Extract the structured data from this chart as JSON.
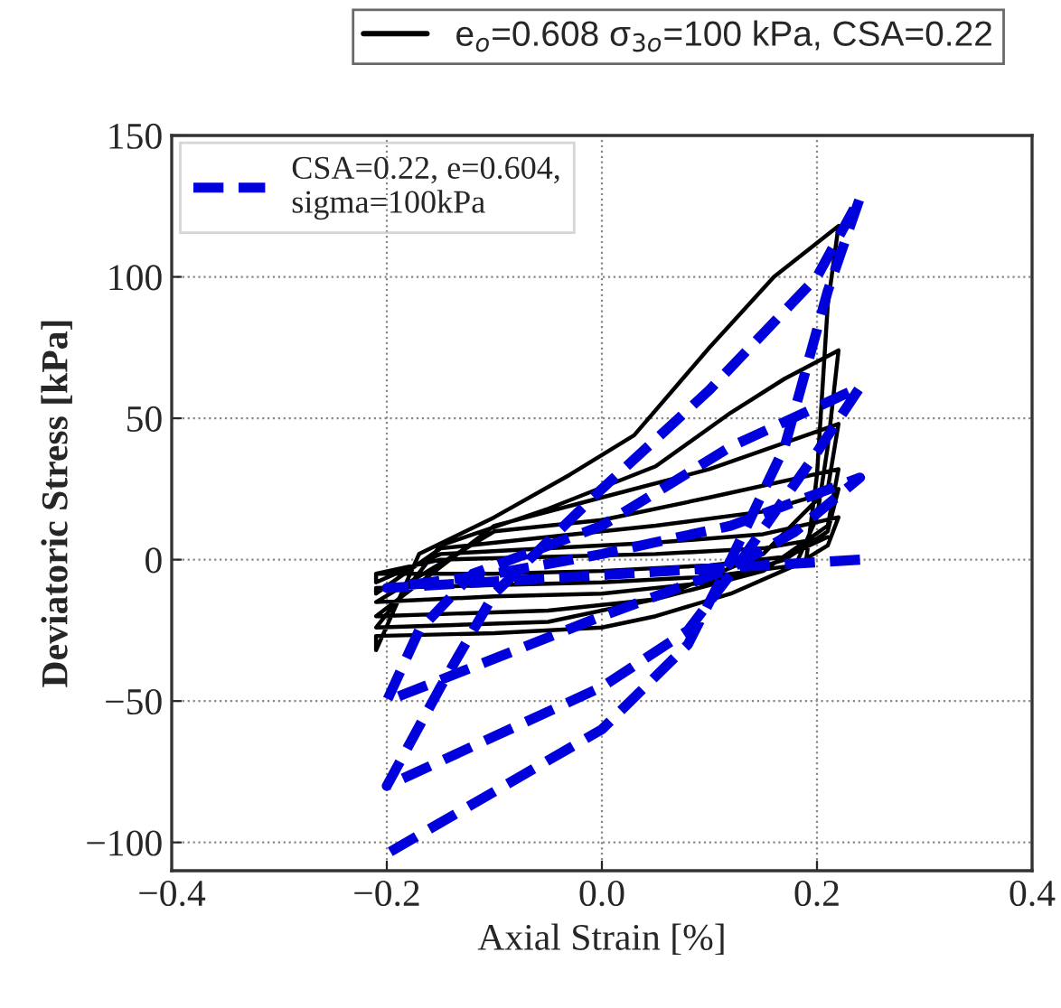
{
  "chart_data": {
    "type": "line",
    "xlabel": "Axial Strain [%]",
    "ylabel": "Deviatoric Stress [kPa]",
    "xlim": [
      -0.4,
      0.4
    ],
    "ylim": [
      -110,
      150
    ],
    "xticks": [
      {
        "value": -0.4,
        "label": "−0.4"
      },
      {
        "value": -0.2,
        "label": "−0.2"
      },
      {
        "value": 0.0,
        "label": "0.0"
      },
      {
        "value": 0.2,
        "label": "0.2"
      },
      {
        "value": 0.4,
        "label": "0.4"
      }
    ],
    "yticks": [
      {
        "value": -100,
        "label": "−100"
      },
      {
        "value": -50,
        "label": "−50"
      },
      0,
      50,
      100,
      150
    ],
    "grid": true,
    "legend": "top left",
    "series": [
      {
        "name": "e$_{o}$=0.608 σ$_{3o}$=100 kPa, CSA=0.22",
        "color": "#000000",
        "line_style": "solid",
        "x": [
          -0.21,
          -0.15,
          -0.05,
          0.05,
          0.15,
          0.21,
          0.17,
          0.1,
          0.0,
          -0.1,
          -0.21,
          -0.21,
          -0.15,
          -0.05,
          0.05,
          0.15,
          0.22,
          0.21,
          0.18,
          0.1,
          0.0,
          -0.1,
          -0.21,
          -0.21,
          -0.15,
          -0.05,
          0.05,
          0.15,
          0.22,
          0.21,
          0.17,
          0.1,
          0.0,
          -0.1,
          -0.21,
          -0.21,
          -0.1,
          0.0,
          0.1,
          0.22,
          0.21,
          0.15,
          0.05,
          -0.05,
          -0.21,
          -0.21,
          -0.1,
          0.0,
          0.1,
          0.22,
          0.21,
          0.15,
          0.05,
          -0.05,
          -0.21,
          -0.15,
          -0.05,
          0.05,
          0.12,
          0.17,
          0.22,
          0.21,
          0.2,
          0.18,
          0.12,
          0.05,
          0.0,
          -0.1,
          -0.21,
          -0.21,
          -0.17,
          -0.1,
          -0.03,
          0.03,
          0.1,
          0.16,
          0.22,
          0.21,
          0.2,
          0.19
        ],
        "values": [
          -5,
          0,
          1,
          2,
          4,
          8,
          1,
          -2,
          -4,
          -5,
          -5,
          -8,
          2,
          4,
          6,
          9,
          15,
          5,
          -2,
          -6,
          -8,
          -9,
          -10,
          -12,
          4,
          8,
          12,
          17,
          25,
          10,
          0,
          -8,
          -12,
          -13,
          -15,
          -15,
          10,
          14,
          22,
          32,
          12,
          -4,
          -14,
          -18,
          -20,
          -20,
          12,
          22,
          32,
          48,
          25,
          2,
          -14,
          -22,
          -24,
          5,
          18,
          33,
          52,
          64,
          74,
          40,
          15,
          -2,
          -12,
          -20,
          -24,
          -26,
          -27,
          -32,
          2,
          15,
          30,
          44,
          75,
          100,
          118,
          90,
          30,
          0
        ]
      },
      {
        "name": "CSA=0.22, e=0.604,\nsigma=100kPa",
        "color": "#0000dd",
        "line_style": "dashed",
        "x": [
          0.24,
          -0.2,
          -0.1,
          0.0,
          0.12,
          0.24,
          0.18,
          0.12,
          0.0,
          -0.2,
          -0.17,
          -0.12,
          0.0,
          0.12,
          0.24,
          0.2,
          0.13,
          0.08,
          0.0,
          -0.2,
          -0.15,
          -0.1,
          0.0,
          0.1,
          0.2,
          0.24,
          0.21,
          0.17,
          0.12,
          0.08,
          0.0,
          -0.2
        ],
        "values": [
          0,
          -10,
          -5,
          2,
          12,
          29,
          10,
          -3,
          -20,
          -50,
          -25,
          -5,
          12,
          40,
          61,
          38,
          0,
          -25,
          -45,
          -80,
          -45,
          -12,
          25,
          60,
          100,
          128,
          95,
          40,
          0,
          -30,
          -60,
          -104
        ]
      }
    ]
  }
}
